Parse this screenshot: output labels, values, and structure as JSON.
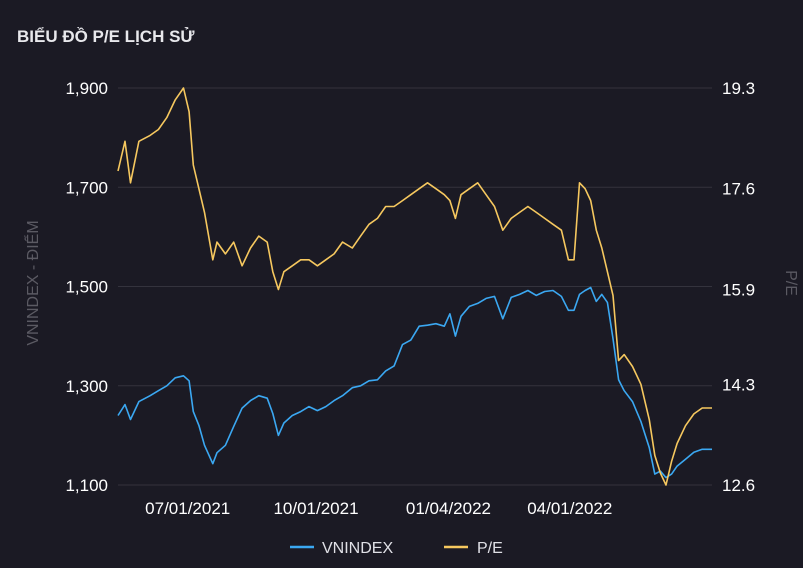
{
  "chart_data": {
    "type": "line",
    "title": "BIỂU ĐỒ P/E LỊCH SỬ",
    "ylabel_left": "VNINDEX - ĐIỂM",
    "ylabel_right": "P/E",
    "ylim_left": [
      1100,
      1900
    ],
    "ylim_right": [
      12.6,
      19.3
    ],
    "yticks_left": [
      "1,900",
      "1,700",
      "1,500",
      "1,300",
      "1,100"
    ],
    "yticks_left_values": [
      1900,
      1700,
      1500,
      1300,
      1100
    ],
    "yticks_right": [
      "19.3",
      "17.6",
      "15.9",
      "14.3",
      "12.6"
    ],
    "yticks_right_values": [
      19.3,
      17.6,
      15.9,
      14.3,
      12.6
    ],
    "x_range": [
      "2021-05-12",
      "2022-07-12"
    ],
    "xticks": [
      {
        "date": "2021-07-01",
        "label": "07/01/2021"
      },
      {
        "date": "2021-10-01",
        "label": "10/01/2021"
      },
      {
        "date": "2022-01-04",
        "label": "01/04/2022"
      },
      {
        "date": "2022-04-01",
        "label": "04/01/2022"
      }
    ],
    "legend": [
      "VNINDEX",
      "P/E"
    ],
    "legend_position": "bottom-center",
    "series": [
      {
        "name": "VNINDEX",
        "axis": "left",
        "color": "#3ba8f2",
        "points": [
          [
            "2021-05-12",
            1240
          ],
          [
            "2021-05-17",
            1262
          ],
          [
            "2021-05-21",
            1232
          ],
          [
            "2021-05-27",
            1268
          ],
          [
            "2021-06-04",
            1280
          ],
          [
            "2021-06-10",
            1290
          ],
          [
            "2021-06-16",
            1300
          ],
          [
            "2021-06-22",
            1316
          ],
          [
            "2021-06-28",
            1320
          ],
          [
            "2021-07-02",
            1310
          ],
          [
            "2021-07-05",
            1248
          ],
          [
            "2021-07-09",
            1220
          ],
          [
            "2021-07-13",
            1180
          ],
          [
            "2021-07-19",
            1143
          ],
          [
            "2021-07-22",
            1165
          ],
          [
            "2021-07-28",
            1180
          ],
          [
            "2021-08-03",
            1218
          ],
          [
            "2021-08-09",
            1255
          ],
          [
            "2021-08-15",
            1270
          ],
          [
            "2021-08-21",
            1280
          ],
          [
            "2021-08-27",
            1275
          ],
          [
            "2021-08-31",
            1244
          ],
          [
            "2021-09-04",
            1200
          ],
          [
            "2021-09-08",
            1225
          ],
          [
            "2021-09-14",
            1240
          ],
          [
            "2021-09-20",
            1248
          ],
          [
            "2021-09-26",
            1258
          ],
          [
            "2021-10-02",
            1250
          ],
          [
            "2021-10-08",
            1258
          ],
          [
            "2021-10-14",
            1270
          ],
          [
            "2021-10-20",
            1280
          ],
          [
            "2021-10-27",
            1296
          ],
          [
            "2021-11-02",
            1300
          ],
          [
            "2021-11-08",
            1310
          ],
          [
            "2021-11-14",
            1312
          ],
          [
            "2021-11-20",
            1330
          ],
          [
            "2021-11-26",
            1340
          ],
          [
            "2021-12-02",
            1383
          ],
          [
            "2021-12-08",
            1392
          ],
          [
            "2021-12-14",
            1420
          ],
          [
            "2021-12-20",
            1422
          ],
          [
            "2021-12-26",
            1425
          ],
          [
            "2022-01-01",
            1420
          ],
          [
            "2022-01-05",
            1445
          ],
          [
            "2022-01-09",
            1400
          ],
          [
            "2022-01-13",
            1440
          ],
          [
            "2022-01-19",
            1460
          ],
          [
            "2022-01-25",
            1466
          ],
          [
            "2022-01-31",
            1476
          ],
          [
            "2022-02-06",
            1480
          ],
          [
            "2022-02-12",
            1435
          ],
          [
            "2022-02-18",
            1478
          ],
          [
            "2022-02-24",
            1484
          ],
          [
            "2022-03-02",
            1492
          ],
          [
            "2022-03-08",
            1482
          ],
          [
            "2022-03-14",
            1490
          ],
          [
            "2022-03-20",
            1492
          ],
          [
            "2022-03-26",
            1480
          ],
          [
            "2022-03-31",
            1452
          ],
          [
            "2022-04-04",
            1452
          ],
          [
            "2022-04-08",
            1484
          ],
          [
            "2022-04-12",
            1492
          ],
          [
            "2022-04-16",
            1498
          ],
          [
            "2022-04-20",
            1470
          ],
          [
            "2022-04-24",
            1484
          ],
          [
            "2022-04-28",
            1468
          ],
          [
            "2022-05-02",
            1395
          ],
          [
            "2022-05-06",
            1312
          ],
          [
            "2022-05-10",
            1290
          ],
          [
            "2022-05-16",
            1268
          ],
          [
            "2022-05-22",
            1228
          ],
          [
            "2022-05-28",
            1175
          ],
          [
            "2022-06-01",
            1122
          ],
          [
            "2022-06-05",
            1128
          ],
          [
            "2022-06-09",
            1115
          ],
          [
            "2022-06-13",
            1122
          ],
          [
            "2022-06-17",
            1138
          ],
          [
            "2022-06-23",
            1152
          ],
          [
            "2022-06-29",
            1166
          ],
          [
            "2022-07-05",
            1172
          ],
          [
            "2022-07-12",
            1172
          ]
        ]
      },
      {
        "name": "P/E",
        "axis": "right",
        "color": "#f6c85f",
        "points": [
          [
            "2021-05-12",
            17.9
          ],
          [
            "2021-05-17",
            18.4
          ],
          [
            "2021-05-21",
            17.7
          ],
          [
            "2021-05-27",
            18.4
          ],
          [
            "2021-06-04",
            18.5
          ],
          [
            "2021-06-10",
            18.6
          ],
          [
            "2021-06-16",
            18.8
          ],
          [
            "2021-06-22",
            19.1
          ],
          [
            "2021-06-28",
            19.3
          ],
          [
            "2021-07-02",
            18.9
          ],
          [
            "2021-07-05",
            18.0
          ],
          [
            "2021-07-09",
            17.6
          ],
          [
            "2021-07-13",
            17.2
          ],
          [
            "2021-07-19",
            16.4
          ],
          [
            "2021-07-22",
            16.7
          ],
          [
            "2021-07-28",
            16.5
          ],
          [
            "2021-08-03",
            16.7
          ],
          [
            "2021-08-09",
            16.3
          ],
          [
            "2021-08-15",
            16.6
          ],
          [
            "2021-08-21",
            16.8
          ],
          [
            "2021-08-27",
            16.7
          ],
          [
            "2021-08-31",
            16.2
          ],
          [
            "2021-09-04",
            15.9
          ],
          [
            "2021-09-08",
            16.2
          ],
          [
            "2021-09-14",
            16.3
          ],
          [
            "2021-09-20",
            16.4
          ],
          [
            "2021-09-26",
            16.4
          ],
          [
            "2021-10-02",
            16.3
          ],
          [
            "2021-10-08",
            16.4
          ],
          [
            "2021-10-14",
            16.5
          ],
          [
            "2021-10-20",
            16.7
          ],
          [
            "2021-10-27",
            16.6
          ],
          [
            "2021-11-02",
            16.8
          ],
          [
            "2021-11-08",
            17.0
          ],
          [
            "2021-11-14",
            17.1
          ],
          [
            "2021-11-20",
            17.3
          ],
          [
            "2021-11-26",
            17.3
          ],
          [
            "2021-12-02",
            17.4
          ],
          [
            "2021-12-08",
            17.5
          ],
          [
            "2021-12-14",
            17.6
          ],
          [
            "2021-12-20",
            17.7
          ],
          [
            "2021-12-26",
            17.6
          ],
          [
            "2022-01-01",
            17.5
          ],
          [
            "2022-01-05",
            17.4
          ],
          [
            "2022-01-09",
            17.1
          ],
          [
            "2022-01-13",
            17.5
          ],
          [
            "2022-01-19",
            17.6
          ],
          [
            "2022-01-25",
            17.7
          ],
          [
            "2022-01-31",
            17.5
          ],
          [
            "2022-02-06",
            17.3
          ],
          [
            "2022-02-12",
            16.9
          ],
          [
            "2022-02-18",
            17.1
          ],
          [
            "2022-02-24",
            17.2
          ],
          [
            "2022-03-02",
            17.3
          ],
          [
            "2022-03-08",
            17.2
          ],
          [
            "2022-03-14",
            17.1
          ],
          [
            "2022-03-20",
            17.0
          ],
          [
            "2022-03-26",
            16.9
          ],
          [
            "2022-03-31",
            16.4
          ],
          [
            "2022-04-04",
            16.4
          ],
          [
            "2022-04-08",
            17.7
          ],
          [
            "2022-04-12",
            17.6
          ],
          [
            "2022-04-16",
            17.4
          ],
          [
            "2022-04-20",
            16.9
          ],
          [
            "2022-04-24",
            16.6
          ],
          [
            "2022-04-28",
            16.2
          ],
          [
            "2022-05-02",
            15.8
          ],
          [
            "2022-05-06",
            14.7
          ],
          [
            "2022-05-10",
            14.8
          ],
          [
            "2022-05-16",
            14.6
          ],
          [
            "2022-05-22",
            14.3
          ],
          [
            "2022-05-28",
            13.7
          ],
          [
            "2022-06-01",
            13.1
          ],
          [
            "2022-06-05",
            12.8
          ],
          [
            "2022-06-09",
            12.6
          ],
          [
            "2022-06-13",
            13.0
          ],
          [
            "2022-06-17",
            13.3
          ],
          [
            "2022-06-23",
            13.6
          ],
          [
            "2022-06-29",
            13.8
          ],
          [
            "2022-07-05",
            13.9
          ],
          [
            "2022-07-12",
            13.9
          ]
        ]
      }
    ]
  }
}
